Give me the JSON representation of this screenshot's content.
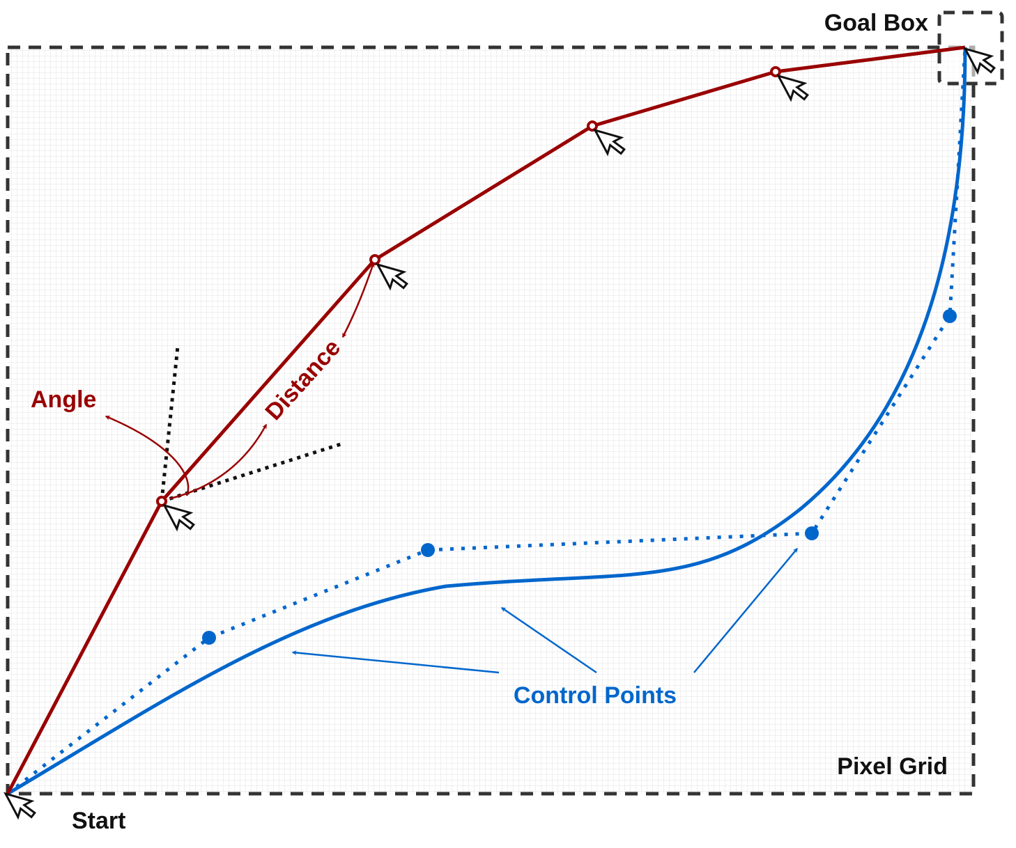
{
  "labels": {
    "goal_box": "Goal Box",
    "pixel_grid": "Pixel Grid",
    "start": "Start",
    "angle": "Angle",
    "distance": "Distance",
    "control_points": "Control Points"
  },
  "colors": {
    "red_path": "#990000",
    "blue_path": "#0066CC",
    "border": "#333333",
    "grid": "#e2e2e2",
    "text": "#111111"
  },
  "icons": [
    "mouse-cursor-icon",
    "arrow-head-icon"
  ]
}
